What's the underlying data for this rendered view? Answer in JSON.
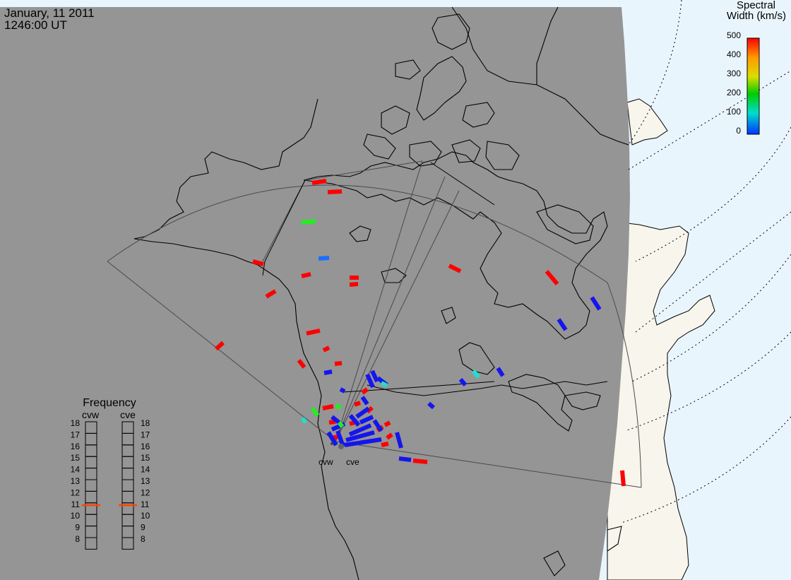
{
  "header": {
    "date": "January, 11 2011",
    "time": "1246:00 UT"
  },
  "colorbar": {
    "title_line1": "Spectral",
    "title_line2": "Width (km/s)",
    "ticks": [
      "500",
      "400",
      "300",
      "200",
      "100",
      "0"
    ],
    "colors": [
      "#ff0000",
      "#ff9900",
      "#dddd00",
      "#00cc00",
      "#00ddcc",
      "#0033ff"
    ]
  },
  "frequency_panel": {
    "title": "Frequency",
    "columns": [
      {
        "name": "cvw",
        "frequency": 10.8
      },
      {
        "name": "cve",
        "frequency": 10.8
      }
    ],
    "scale": [
      "18",
      "17",
      "16",
      "15",
      "14",
      "13",
      "12",
      "11",
      "10",
      "9",
      "8"
    ],
    "marker_color": "#ff4400"
  },
  "radar_sites": {
    "west": "cvw",
    "east": "cve"
  },
  "colors": {
    "night": "#959595",
    "day_ocean": "#e9f5fd",
    "day_land": "#f7f5ec",
    "red": "#ff0000",
    "blue": "#1515ee",
    "green": "#22ee22",
    "cyan": "#22ddcc",
    "azure": "#1a6fff"
  }
}
